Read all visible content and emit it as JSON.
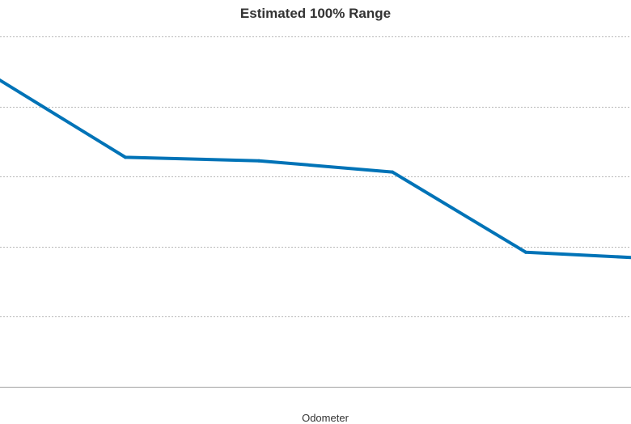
{
  "chart_data": {
    "type": "line",
    "title": "Estimated 100% Range",
    "xlabel": "Odometer",
    "ylabel": "",
    "x": [
      1,
      2,
      3,
      4,
      5,
      6
    ],
    "series": [
      {
        "values": [
          88.9,
          65.5,
          64.5,
          61.3,
          38.4,
          36.5
        ],
        "color": "#0073b7"
      }
    ],
    "ylim": [
      0,
      100
    ],
    "grid": true,
    "colors": {
      "line": "#0073b7",
      "grid": "#b8b8b8",
      "axis": "#a0a0a0",
      "text": "#333333"
    }
  }
}
